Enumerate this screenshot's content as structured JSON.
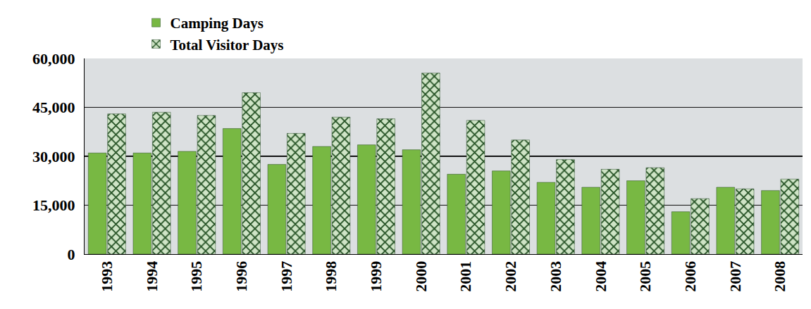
{
  "chart_data": {
    "type": "bar",
    "categories": [
      "1993",
      "1994",
      "1995",
      "1996",
      "1997",
      "1998",
      "1999",
      "2000",
      "2001",
      "2002",
      "2003",
      "2004",
      "2005",
      "2006",
      "2007",
      "2008"
    ],
    "series": [
      {
        "name": "Camping Days",
        "color": "#78b843",
        "values": [
          31000,
          31000,
          31500,
          38500,
          27500,
          33000,
          33500,
          32000,
          24500,
          25500,
          22000,
          20500,
          22500,
          13000,
          20500,
          19500
        ]
      },
      {
        "name": "Total Visitor Days",
        "color": "#cfe4c6",
        "values": [
          43000,
          43500,
          42500,
          49500,
          37000,
          42000,
          41500,
          55500,
          41000,
          35000,
          29000,
          26000,
          26500,
          17000,
          20000,
          23000
        ]
      }
    ],
    "ylim": [
      0,
      60000
    ],
    "yticks": [
      0,
      {
        "value": 15000,
        "label": "15,000"
      },
      {
        "value": 30000,
        "label": "30,000"
      },
      {
        "value": 45000,
        "label": "45,000"
      },
      {
        "value": 60000,
        "label": "60,000"
      }
    ],
    "grid": true,
    "legend": "top"
  }
}
